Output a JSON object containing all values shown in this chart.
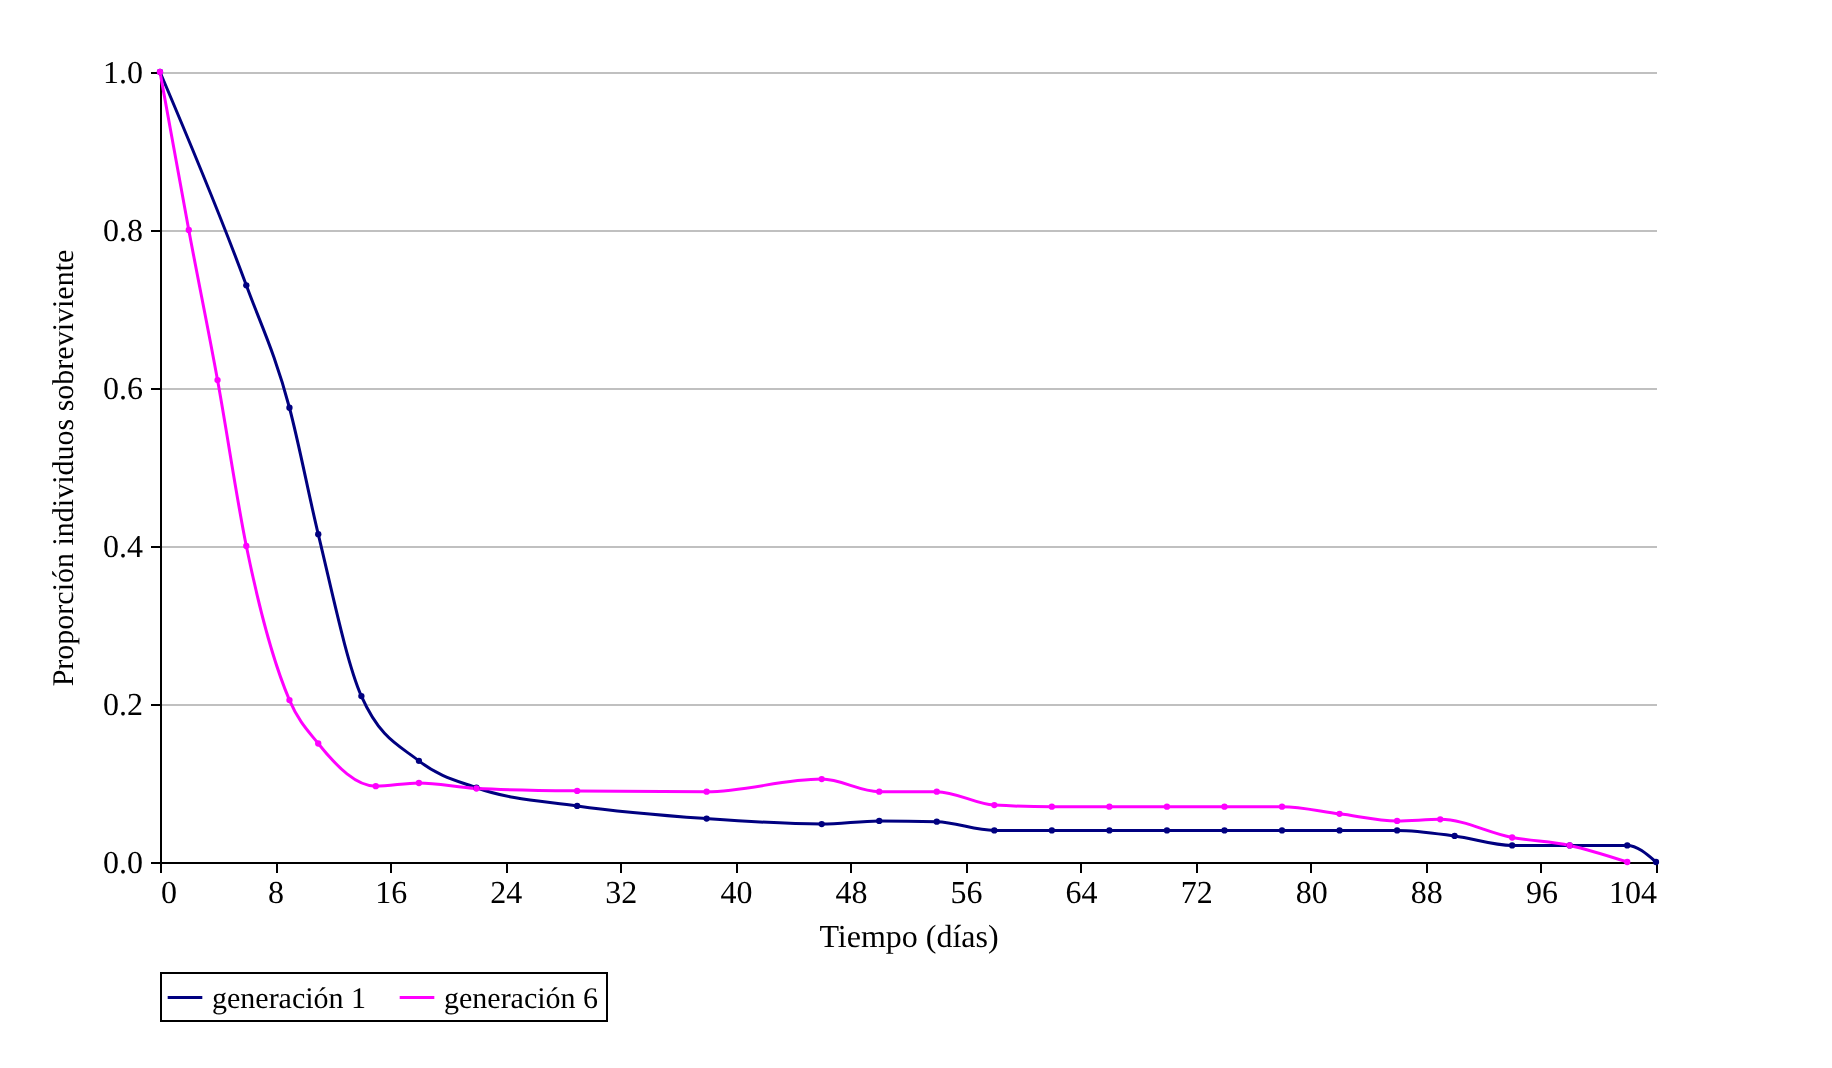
{
  "chart_data": {
    "type": "line",
    "xlabel": "Tiempo (días)",
    "ylabel": "Proporción individuos sobreviviente",
    "xlim": [
      0,
      104
    ],
    "xticks": [
      0,
      8,
      16,
      24,
      32,
      40,
      48,
      56,
      64,
      72,
      80,
      88,
      96,
      104
    ],
    "ylim": [
      0,
      1
    ],
    "yticks": [
      {
        "value": 0,
        "label": "0.0"
      },
      {
        "value": 0.2,
        "label": "0.2"
      },
      {
        "value": 0.4,
        "label": "0.4"
      },
      {
        "value": 0.6,
        "label": "0.6"
      },
      {
        "value": 0.8,
        "label": "0.8"
      },
      {
        "value": 1,
        "label": "1.0"
      }
    ],
    "grid": "y",
    "legend": "bottom",
    "marker": "circle",
    "line_style": "solid",
    "series": [
      {
        "name": "generación 1",
        "color": "#000080",
        "x": [
          0,
          6,
          9,
          11,
          14,
          18,
          22,
          29,
          38,
          46,
          50,
          54,
          58,
          62,
          66,
          70,
          74,
          78,
          82,
          86,
          90,
          94,
          98,
          102,
          104
        ],
        "values": [
          1.0,
          0.73,
          0.575,
          0.415,
          0.21,
          0.128,
          0.094,
          0.071,
          0.055,
          0.048,
          0.052,
          0.051,
          0.04,
          0.04,
          0.04,
          0.04,
          0.04,
          0.04,
          0.04,
          0.04,
          0.033,
          0.021,
          0.021,
          0.021,
          0
        ]
      },
      {
        "name": "generación 6",
        "color": "#ff00ff",
        "x": [
          0,
          2,
          4,
          6,
          9,
          11,
          15,
          18,
          22,
          29,
          38,
          46,
          50,
          54,
          58,
          62,
          66,
          70,
          74,
          78,
          82,
          86,
          89,
          94,
          98,
          102
        ],
        "values": [
          1.0,
          0.8,
          0.61,
          0.4,
          0.205,
          0.15,
          0.096,
          0.1,
          0.093,
          0.09,
          0.089,
          0.105,
          0.089,
          0.089,
          0.072,
          0.07,
          0.07,
          0.07,
          0.07,
          0.07,
          0.061,
          0.052,
          0.054,
          0.031,
          0.021,
          0
        ]
      }
    ]
  }
}
